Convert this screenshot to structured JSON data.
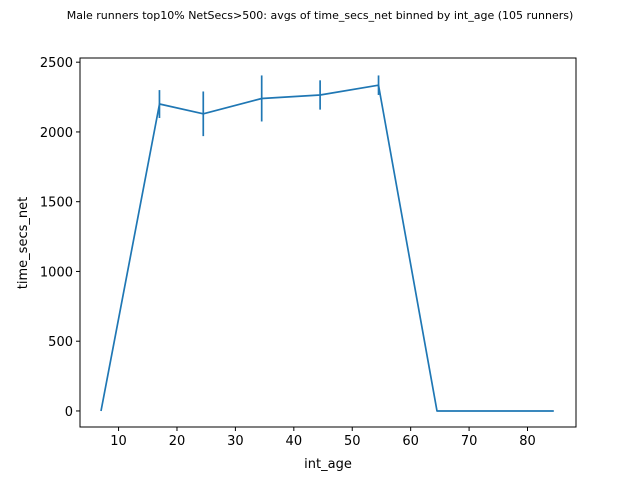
{
  "chart_data": {
    "type": "line",
    "title": "Male runners top10% NetSecs>500: avgs of time_secs_net binned by int_age (105 runners)",
    "xlabel": "int_age",
    "ylabel": "time_secs_net",
    "xlim": [
      3.4,
      88.3
    ],
    "ylim": [
      -115,
      2530
    ],
    "x_ticks": [
      10,
      20,
      30,
      40,
      50,
      60,
      70,
      80
    ],
    "y_ticks": [
      0,
      500,
      1000,
      1500,
      2000,
      2500
    ],
    "grid": false,
    "line_color": "#1f77b4",
    "series": [
      {
        "x": [
          7,
          17,
          24.5,
          34.5,
          44.5,
          54.5,
          64.5,
          74.5,
          84.5
        ],
        "y": [
          0,
          2200,
          2130,
          2240,
          2265,
          2335,
          0,
          0,
          0
        ],
        "yerr": [
          0,
          100,
          160,
          165,
          105,
          70,
          0,
          0,
          0
        ]
      }
    ]
  }
}
